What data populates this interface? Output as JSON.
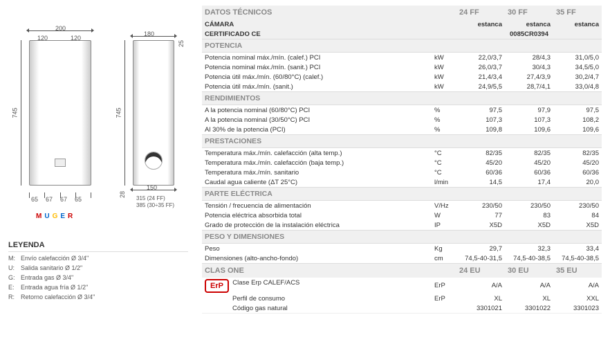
{
  "diagram": {
    "dims": {
      "w_total": "200",
      "w_half": "120",
      "h_total": "745",
      "d_total": "180",
      "d_small": "25",
      "h_side": "745",
      "d_block": "28",
      "bottom_150": "150",
      "label_315": "315 (24 FF)",
      "label_385": "385 (30÷35 FF)",
      "bottom_spacing": [
        "65",
        "67",
        "67",
        "65"
      ]
    },
    "muger": [
      "M",
      "U",
      "G",
      "E",
      "R"
    ]
  },
  "legend": {
    "title": "LEYENDA",
    "rows": [
      {
        "k": "M:",
        "v": "Envío calefacción Ø 3/4\""
      },
      {
        "k": "U:",
        "v": "Salida sanitario Ø 1/2\""
      },
      {
        "k": "G:",
        "v": "Entrada gas Ø 3/4\""
      },
      {
        "k": "E:",
        "v": "Entrada agua fría Ø 1/2\""
      },
      {
        "k": "R:",
        "v": "Retorno calefacción Ø 3/4\""
      }
    ]
  },
  "table": {
    "title": "DATOS TÉCNICOS",
    "models": [
      "24 FF",
      "30 FF",
      "35 FF"
    ],
    "camara": {
      "label": "CÁMARA",
      "vals": [
        "estanca",
        "estanca",
        "estanca"
      ]
    },
    "cert": {
      "label": "CERTIFICADO CE",
      "val": "0085CR0394"
    },
    "sections": [
      {
        "title": "POTENCIA",
        "rows": [
          {
            "l": "Potencia nominal máx./mín. (calef.) PCI",
            "u": "kW",
            "v": [
              "22,0/3,7",
              "28/4,3",
              "31,0/5,0"
            ]
          },
          {
            "l": "Potencia nominal máx./mín. (sanit.) PCI",
            "u": "kW",
            "v": [
              "26,0/3,7",
              "30/4,3",
              "34,5/5,0"
            ]
          },
          {
            "l": "Potencia útil máx./mín. (60/80°C) (calef.)",
            "u": "kW",
            "v": [
              "21,4/3,4",
              "27,4/3,9",
              "30,2/4,7"
            ]
          },
          {
            "l": "Potencia útil máx./mín. (sanit.)",
            "u": "kW",
            "v": [
              "24,9/5,5",
              "28,7/4,1",
              "33,0/4,8"
            ]
          }
        ]
      },
      {
        "title": "RENDIMIENTOS",
        "rows": [
          {
            "l": "A la potencia nominal (60/80°C) PCI",
            "u": "%",
            "v": [
              "97,5",
              "97,9",
              "97,5"
            ]
          },
          {
            "l": "A la potencia nominal (30/50°C) PCI",
            "u": "%",
            "v": [
              "107,3",
              "107,3",
              "108,2"
            ]
          },
          {
            "l": "Al 30% de la potencia (PCI)",
            "u": "%",
            "v": [
              "109,8",
              "109,6",
              "109,6"
            ]
          }
        ]
      },
      {
        "title": "PRESTACIONES",
        "rows": [
          {
            "l": "Temperatura máx./mín. calefacción (alta temp.)",
            "u": "°C",
            "v": [
              "82/35",
              "82/35",
              "82/35"
            ]
          },
          {
            "l": "Temperatura máx./mín. calefacción (baja temp.)",
            "u": "°C",
            "v": [
              "45/20",
              "45/20",
              "45/20"
            ]
          },
          {
            "l": "Temperatura máx./mín. sanitario",
            "u": "°C",
            "v": [
              "60/36",
              "60/36",
              "60/36"
            ]
          },
          {
            "l": "Caudal agua caliente (ΔT 25°C)",
            "u": "l/min",
            "v": [
              "14,5",
              "17,4",
              "20,0"
            ]
          }
        ]
      },
      {
        "title": "PARTE ELÉCTRICA",
        "rows": [
          {
            "l": "Tensión / frecuencia de alimentación",
            "u": "V/Hz",
            "v": [
              "230/50",
              "230/50",
              "230/50"
            ]
          },
          {
            "l": "Potencia eléctrica absorbida total",
            "u": "W",
            "v": [
              "77",
              "83",
              "84"
            ]
          },
          {
            "l": "Grado de protección de la instalación eléctrica",
            "u": "IP",
            "v": [
              "X5D",
              "X5D",
              "X5D"
            ]
          }
        ]
      },
      {
        "title": "PESO Y DIMENSIONES",
        "rows": [
          {
            "l": "Peso",
            "u": "Kg",
            "v": [
              "29,7",
              "32,3",
              "33,4"
            ]
          },
          {
            "l": "Dimensiones (alto-ancho-fondo)",
            "u": "cm",
            "v": [
              "74,5-40-31,5",
              "74,5-40-38,5",
              "74,5-40-38,5"
            ]
          }
        ]
      }
    ]
  },
  "clasone": {
    "title": "CLAS ONE",
    "models": [
      "24 EU",
      "30 EU",
      "35 EU"
    ],
    "erp_label": "ErP",
    "rows": [
      {
        "l": "Clase Erp CALEF/ACS",
        "u": "ErP",
        "v": [
          "A/A",
          "A/A",
          "A/A"
        ]
      },
      {
        "l": "Perfil de consumo",
        "u": "ErP",
        "v": [
          "XL",
          "XL",
          "XXL"
        ]
      }
    ],
    "gas": {
      "l": "Código gas natural",
      "v": [
        "3301021",
        "3301022",
        "3301023"
      ]
    }
  }
}
